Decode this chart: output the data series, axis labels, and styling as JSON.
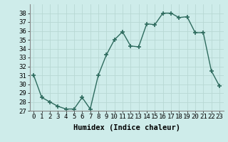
{
  "x": [
    0,
    1,
    2,
    3,
    4,
    5,
    6,
    7,
    8,
    9,
    10,
    11,
    12,
    13,
    14,
    15,
    16,
    17,
    18,
    19,
    20,
    21,
    22,
    23
  ],
  "y": [
    31,
    28.5,
    28,
    27.5,
    27.2,
    27.2,
    28.5,
    27.2,
    31,
    33.3,
    35,
    35.9,
    34.3,
    34.2,
    36.8,
    36.7,
    38,
    38,
    37.5,
    37.6,
    35.8,
    35.8,
    31.5,
    29.8
  ],
  "line_color": "#2e6b5e",
  "marker": "+",
  "markersize": 4,
  "linewidth": 1.0,
  "xlabel": "Humidex (Indice chaleur)",
  "xlim": [
    -0.5,
    23.5
  ],
  "ylim": [
    27,
    39
  ],
  "yticks": [
    27,
    28,
    29,
    30,
    31,
    32,
    33,
    34,
    35,
    36,
    37,
    38
  ],
  "xticks": [
    0,
    1,
    2,
    3,
    4,
    5,
    6,
    7,
    8,
    9,
    10,
    11,
    12,
    13,
    14,
    15,
    16,
    17,
    18,
    19,
    20,
    21,
    22,
    23
  ],
  "xtick_labels": [
    "0",
    "1",
    "2",
    "3",
    "4",
    "5",
    "6",
    "7",
    "8",
    "9",
    "10",
    "11",
    "12",
    "13",
    "14",
    "15",
    "16",
    "17",
    "18",
    "19",
    "20",
    "21",
    "22",
    "23"
  ],
  "background_color": "#ceecea",
  "grid_color": "#b8d8d4",
  "tick_fontsize": 6.5,
  "xlabel_fontsize": 7.5,
  "xlabel_fontweight": "bold"
}
